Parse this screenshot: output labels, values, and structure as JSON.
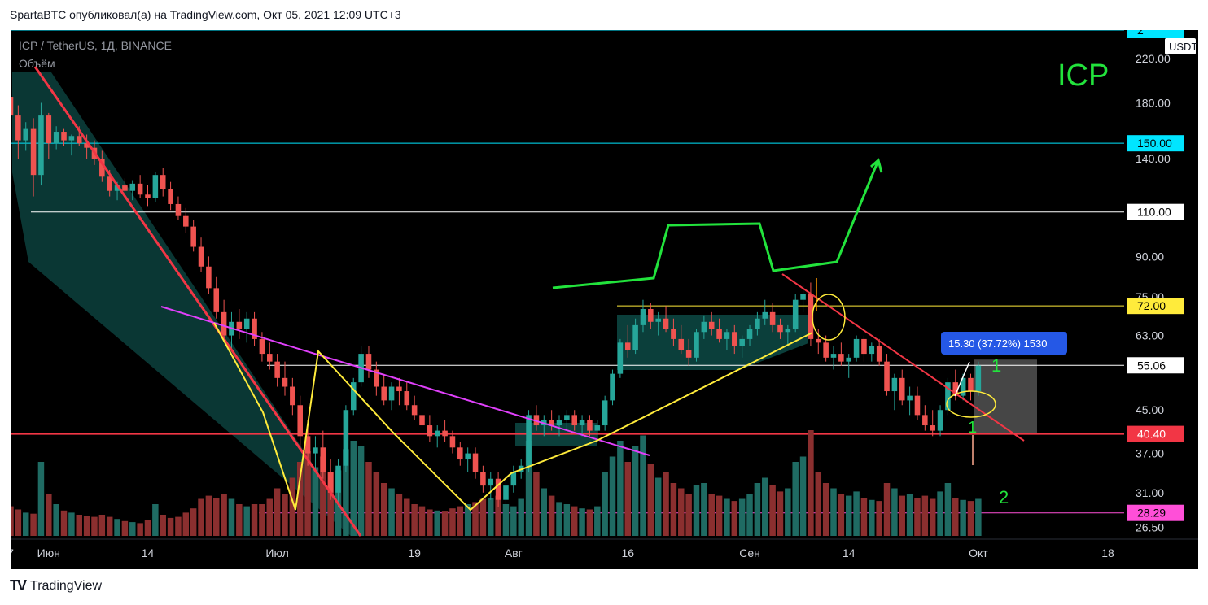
{
  "header": {
    "text": "SpartaBTC опубликовал(а) на TradingView.com, Окт 05, 2021 12:09 UTC+3"
  },
  "footer": {
    "logo": "TV",
    "brand": "TradingView"
  },
  "chart_data": {
    "type": "candlestick",
    "symbol_line": "ICP / TetherUS, 1Д, BINANCE",
    "volume_label": "Объём",
    "big_label": "ICP",
    "currency_badge": "USDT",
    "scale": "log",
    "y_range": [
      25.5,
      250
    ],
    "y_ticks": [
      26.5,
      31,
      37,
      45,
      55,
      63,
      75,
      90,
      110,
      140,
      150,
      180,
      220
    ],
    "y_tick_labels": [
      "26.50",
      "31.00",
      "37.00",
      "45.00",
      "55.00",
      "63.00",
      "75.00",
      "90.00",
      "110.00",
      "140.00",
      "150.00",
      "180.00",
      "220.00"
    ],
    "x_ticks": [
      {
        "label": "7",
        "date": "2021-05-27"
      },
      {
        "label": "Июн",
        "date": "2021-06-01"
      },
      {
        "label": "14",
        "date": "2021-06-14"
      },
      {
        "label": "Июл",
        "date": "2021-07-01"
      },
      {
        "label": "19",
        "date": "2021-07-19"
      },
      {
        "label": "Авг",
        "date": "2021-08-01"
      },
      {
        "label": "16",
        "date": "2021-08-16"
      },
      {
        "label": "Сен",
        "date": "2021-09-01"
      },
      {
        "label": "14",
        "date": "2021-09-14"
      },
      {
        "label": "Окт",
        "date": "2021-10-01"
      },
      {
        "label": "18",
        "date": "2021-10-18"
      }
    ],
    "price_levels": [
      {
        "value": 250,
        "label": "2",
        "color": "#00e5ff",
        "text_color": "#000000"
      },
      {
        "value": 150,
        "label": "150.00",
        "color": "#00e5ff",
        "text_color": "#000000"
      },
      {
        "value": 110,
        "label": "110.00",
        "color": "#ffffff",
        "text_color": "#000000"
      },
      {
        "value": 72,
        "label": "72.00",
        "color": "#ffeb3b",
        "text_color": "#000000"
      },
      {
        "value": 55.06,
        "label": "55.06",
        "color": "#ffffff",
        "text_color": "#000000"
      },
      {
        "value": 40.4,
        "label": "40.40",
        "color": "#f23645",
        "text_color": "#ffffff"
      },
      {
        "value": 28.29,
        "label": "28.29",
        "color": "#ff4fd8",
        "text_color": "#000000"
      }
    ],
    "measure_label": "15.30 (37.72%) 1530",
    "annotations": [
      {
        "text": "1",
        "color": "#22e33c"
      },
      {
        "text": "2",
        "color": "#22e33c"
      },
      {
        "text": "1",
        "color": "#22e33c"
      }
    ],
    "colors": {
      "up": "#26a69a",
      "down": "#ef5350",
      "vol_up": "#1f6b63",
      "vol_down": "#8b2f2f",
      "background": "#000000"
    },
    "candles": [
      [
        230,
        238,
        190,
        210
      ],
      [
        210,
        215,
        175,
        185
      ],
      [
        185,
        192,
        150,
        170
      ],
      [
        170,
        178,
        140,
        152
      ],
      [
        152,
        165,
        145,
        160
      ],
      [
        160,
        168,
        118,
        130
      ],
      [
        130,
        180,
        124,
        170
      ],
      [
        170,
        172,
        140,
        150
      ],
      [
        150,
        162,
        146,
        158
      ],
      [
        158,
        160,
        148,
        152
      ],
      [
        152,
        156,
        142,
        155
      ],
      [
        155,
        162,
        148,
        150
      ],
      [
        150,
        156,
        140,
        147
      ],
      [
        147,
        152,
        136,
        140
      ],
      [
        140,
        145,
        126,
        129
      ],
      [
        129,
        133,
        118,
        121
      ],
      [
        121,
        126,
        116,
        124
      ],
      [
        124,
        128,
        117,
        121
      ],
      [
        121,
        127,
        116,
        125
      ],
      [
        125,
        130,
        117,
        119
      ],
      [
        119,
        124,
        113,
        117
      ],
      [
        117,
        132,
        115,
        130
      ],
      [
        130,
        134,
        118,
        122
      ],
      [
        122,
        126,
        111,
        114
      ],
      [
        114,
        118,
        106,
        108
      ],
      [
        108,
        112,
        100,
        103
      ],
      [
        103,
        106,
        92,
        94
      ],
      [
        94,
        98,
        84,
        86
      ],
      [
        86,
        90,
        76,
        78
      ],
      [
        78,
        82,
        68,
        70
      ],
      [
        70,
        74,
        62,
        63
      ],
      [
        63,
        70,
        59,
        67
      ],
      [
        67,
        71,
        62,
        65
      ],
      [
        65,
        70,
        61,
        68
      ],
      [
        68,
        70,
        60,
        62
      ],
      [
        62,
        64,
        56,
        58
      ],
      [
        58,
        61,
        54,
        56
      ],
      [
        56,
        58,
        50,
        52
      ],
      [
        52,
        56,
        48,
        50
      ],
      [
        50,
        52,
        44,
        46
      ],
      [
        46,
        48,
        38,
        40
      ],
      [
        40,
        43,
        35,
        37
      ],
      [
        37,
        40,
        34,
        38
      ],
      [
        38,
        41,
        33,
        34
      ],
      [
        34,
        36,
        30,
        31
      ],
      [
        31,
        36,
        29,
        35
      ],
      [
        35,
        46,
        34,
        45
      ],
      [
        45,
        52,
        44,
        51
      ],
      [
        51,
        60,
        50,
        58
      ],
      [
        58,
        60,
        52,
        54
      ],
      [
        54,
        56,
        48,
        50
      ],
      [
        50,
        53,
        46,
        47
      ],
      [
        47,
        51,
        45,
        50
      ],
      [
        50,
        52,
        46,
        49
      ],
      [
        49,
        51,
        45,
        46
      ],
      [
        46,
        48,
        43,
        44
      ],
      [
        44,
        46,
        41,
        42
      ],
      [
        42,
        44,
        39,
        40
      ],
      [
        40,
        42,
        38,
        41
      ],
      [
        41,
        43,
        39,
        40
      ],
      [
        40,
        41,
        37,
        38
      ],
      [
        38,
        39,
        35,
        36
      ],
      [
        36,
        38,
        34,
        37
      ],
      [
        37,
        38,
        33,
        34
      ],
      [
        34,
        35,
        31,
        32
      ],
      [
        32,
        34,
        30,
        33
      ],
      [
        33,
        34,
        29,
        30
      ],
      [
        30,
        33,
        29,
        32
      ],
      [
        32,
        35,
        31,
        34
      ],
      [
        34,
        36,
        33,
        35
      ],
      [
        35,
        45,
        34,
        44
      ],
      [
        44,
        46,
        41,
        42
      ],
      [
        42,
        44,
        40,
        43
      ],
      [
        43,
        45,
        41,
        42
      ],
      [
        42,
        44,
        40,
        43
      ],
      [
        43,
        45,
        41,
        44
      ],
      [
        44,
        45,
        41,
        42
      ],
      [
        42,
        44,
        40,
        43
      ],
      [
        43,
        44,
        40,
        41
      ],
      [
        41,
        43,
        39,
        42
      ],
      [
        42,
        48,
        41,
        47
      ],
      [
        47,
        54,
        46,
        53
      ],
      [
        53,
        62,
        52,
        61
      ],
      [
        61,
        66,
        57,
        59
      ],
      [
        59,
        68,
        58,
        66
      ],
      [
        66,
        74,
        64,
        71
      ],
      [
        71,
        73,
        65,
        67
      ],
      [
        67,
        70,
        63,
        68
      ],
      [
        68,
        72,
        64,
        65
      ],
      [
        65,
        68,
        60,
        62
      ],
      [
        62,
        66,
        58,
        59
      ],
      [
        59,
        62,
        55,
        57
      ],
      [
        57,
        65,
        56,
        64
      ],
      [
        64,
        69,
        62,
        67
      ],
      [
        67,
        70,
        63,
        65
      ],
      [
        65,
        68,
        61,
        62
      ],
      [
        62,
        65,
        59,
        64
      ],
      [
        64,
        66,
        58,
        60
      ],
      [
        60,
        63,
        57,
        62
      ],
      [
        62,
        66,
        60,
        65
      ],
      [
        65,
        70,
        63,
        68
      ],
      [
        68,
        74,
        66,
        70
      ],
      [
        70,
        73,
        64,
        66
      ],
      [
        66,
        68,
        62,
        64
      ],
      [
        64,
        66,
        60,
        65
      ],
      [
        65,
        76,
        64,
        74
      ],
      [
        74,
        79,
        70,
        76
      ],
      [
        76,
        80,
        60,
        62
      ],
      [
        62,
        65,
        58,
        61
      ],
      [
        61,
        63,
        56,
        57
      ],
      [
        57,
        60,
        54,
        58
      ],
      [
        58,
        61,
        55,
        56
      ],
      [
        56,
        58,
        52,
        57
      ],
      [
        57,
        63,
        56,
        62
      ],
      [
        62,
        63,
        56,
        58
      ],
      [
        58,
        61,
        56,
        60
      ],
      [
        60,
        62,
        55,
        56
      ],
      [
        56,
        58,
        48,
        49
      ],
      [
        49,
        53,
        45,
        52
      ],
      [
        52,
        54,
        46,
        47
      ],
      [
        47,
        50,
        44,
        48
      ],
      [
        48,
        50,
        43,
        44
      ],
      [
        44,
        46,
        41,
        42
      ],
      [
        42,
        45,
        40,
        41
      ],
      [
        41,
        46,
        40,
        45
      ],
      [
        45,
        52,
        44,
        51
      ],
      [
        51,
        54,
        47,
        48
      ],
      [
        48,
        53,
        47,
        52
      ],
      [
        52,
        53,
        47,
        49
      ],
      [
        49,
        56,
        48,
        55
      ]
    ],
    "volumes": [
      0.32,
      0.3,
      0.28,
      0.25,
      0.22,
      0.21,
      0.7,
      0.4,
      0.3,
      0.24,
      0.22,
      0.2,
      0.19,
      0.18,
      0.2,
      0.18,
      0.16,
      0.14,
      0.13,
      0.12,
      0.15,
      0.3,
      0.2,
      0.17,
      0.18,
      0.22,
      0.26,
      0.35,
      0.38,
      0.36,
      0.4,
      0.35,
      0.3,
      0.28,
      0.3,
      0.3,
      0.35,
      0.45,
      0.4,
      0.55,
      0.7,
      0.8,
      0.65,
      0.75,
      0.6,
      0.62,
      0.82,
      0.9,
      0.85,
      0.7,
      0.6,
      0.5,
      0.45,
      0.4,
      0.35,
      0.3,
      0.28,
      0.25,
      0.24,
      0.23,
      0.26,
      0.28,
      0.3,
      0.32,
      0.35,
      0.36,
      0.38,
      0.3,
      0.28,
      0.35,
      0.9,
      0.6,
      0.45,
      0.38,
      0.32,
      0.3,
      0.28,
      0.26,
      0.25,
      0.28,
      0.6,
      0.75,
      0.9,
      0.7,
      0.85,
      0.95,
      0.68,
      0.55,
      0.6,
      0.5,
      0.45,
      0.4,
      0.48,
      0.5,
      0.4,
      0.38,
      0.35,
      0.33,
      0.35,
      0.4,
      0.5,
      0.55,
      0.48,
      0.42,
      0.45,
      0.7,
      0.75,
      1.0,
      0.6,
      0.5,
      0.45,
      0.4,
      0.38,
      0.42,
      0.36,
      0.34,
      0.33,
      0.5,
      0.45,
      0.38,
      0.4,
      0.36,
      0.38,
      0.35,
      0.42,
      0.5,
      0.36,
      0.34,
      0.33,
      0.35
    ]
  }
}
